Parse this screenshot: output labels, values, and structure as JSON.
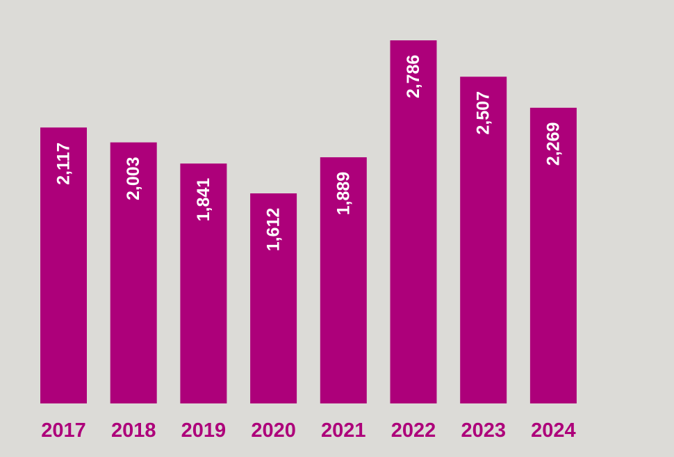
{
  "chart_data": {
    "type": "bar",
    "categories": [
      "2017",
      "2018",
      "2019",
      "2020",
      "2021",
      "2022",
      "2023",
      "2024"
    ],
    "values": [
      2117,
      2003,
      1841,
      1612,
      1889,
      2786,
      2507,
      2269
    ],
    "value_labels": [
      "2,117",
      "2,003",
      "1,841",
      "1,612",
      "1,889",
      "2,786",
      "2,507",
      "2,269"
    ],
    "title": "",
    "xlabel": "",
    "ylabel": "",
    "ylim": [
      0,
      2786
    ],
    "grid": false,
    "legend": "none",
    "colors": {
      "bar": "#ad007a",
      "background": "#dcdbd7",
      "value_label": "#ffffff",
      "category_label": "#ad007a"
    }
  }
}
